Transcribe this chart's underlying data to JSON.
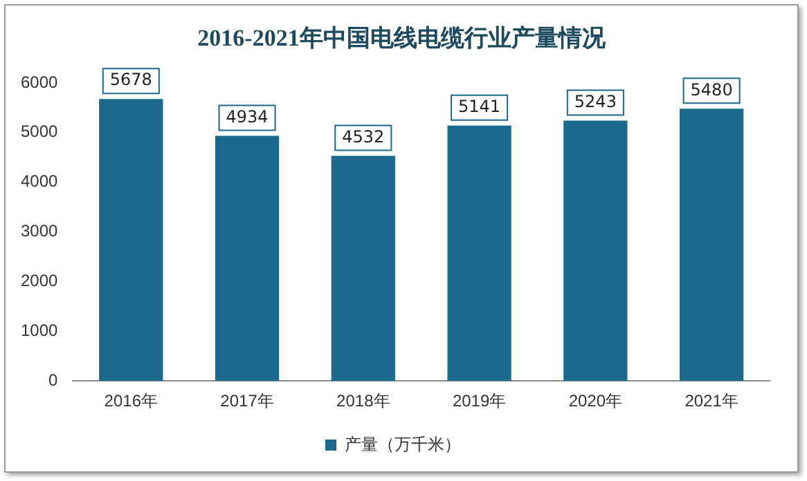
{
  "chart_data": {
    "type": "bar",
    "title": "2016-2021年中国电线电缆行业产量情况",
    "categories": [
      "2016年",
      "2017年",
      "2018年",
      "2019年",
      "2020年",
      "2021年"
    ],
    "series": [
      {
        "name": "产量（万千米）",
        "color": "#1b6a8e",
        "values": [
          5678,
          4934,
          4532,
          5141,
          5243,
          5480
        ]
      }
    ],
    "ylim": [
      0,
      6000
    ],
    "yticks": [
      0,
      1000,
      2000,
      3000,
      4000,
      5000,
      6000
    ],
    "grid": false,
    "legend": "bottom",
    "data_labels": true
  }
}
